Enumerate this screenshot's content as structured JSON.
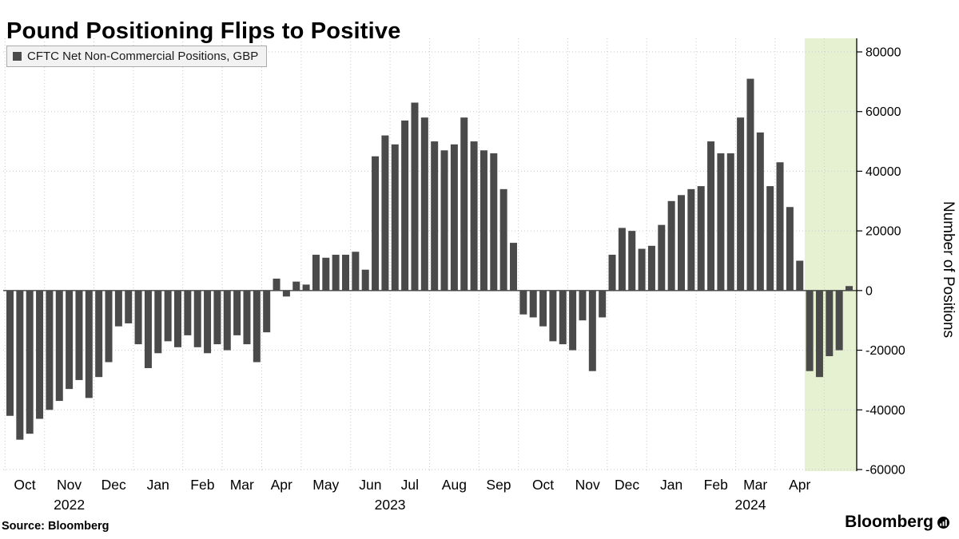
{
  "title": "Pound Positioning Flips to Positive",
  "legend": {
    "label": "CFTC Net Non-Commercial Positions, GBP",
    "swatch_color": "#4a4a4a",
    "swatch_icon": "square"
  },
  "source": "Source: Bloomberg",
  "brand": "Bloomberg",
  "brand_icon": "bloomberg-chart-mark",
  "colors": {
    "bar": "#4a4a4a",
    "highlight_band": "#e6f1d2",
    "gridline": "#c9c9c9",
    "zero_line": "#2b2b2b",
    "axis": "#000000",
    "background": "#ffffff"
  },
  "chart_data": {
    "type": "bar",
    "title": "Pound Positioning Flips to Positive",
    "series_name": "CFTC Net Non-Commercial Positions, GBP",
    "frequency": "weekly",
    "xlabel": "",
    "ylabel": "Number of Positions",
    "ylim": [
      -60000,
      80000
    ],
    "yticks": [
      80000,
      60000,
      40000,
      20000,
      0,
      -20000,
      -40000,
      -60000
    ],
    "grid": true,
    "legend_position": "top-left",
    "bar_color": "#4a4a4a",
    "highlight_color": "#e6f1d2",
    "highlight_start_week_index": 81,
    "months": [
      {
        "label": "Oct",
        "year": "2022",
        "values": [
          -42000,
          -50000,
          -48000,
          -43000
        ]
      },
      {
        "label": "Nov",
        "year": "2022",
        "values": [
          -40000,
          -37000,
          -33000,
          -30000,
          -36000
        ]
      },
      {
        "label": "Dec",
        "year": "2022",
        "values": [
          -29000,
          -24000,
          -12000,
          -11000
        ]
      },
      {
        "label": "Jan",
        "year": "2023",
        "values": [
          -18000,
          -26000,
          -21000,
          -17000,
          -19000
        ]
      },
      {
        "label": "Feb",
        "year": "2023",
        "values": [
          -15000,
          -19000,
          -21000,
          -18000
        ]
      },
      {
        "label": "Mar",
        "year": "2023",
        "values": [
          -20000,
          -15000,
          -18000,
          -24000
        ]
      },
      {
        "label": "Apr",
        "year": "2023",
        "values": [
          -14000,
          4000,
          -2000,
          3000
        ]
      },
      {
        "label": "May",
        "year": "2023",
        "values": [
          2000,
          12000,
          11000,
          12000,
          12000
        ]
      },
      {
        "label": "Jun",
        "year": "2023",
        "values": [
          13000,
          7000,
          45000,
          52000
        ]
      },
      {
        "label": "Jul",
        "year": "2023",
        "values": [
          49000,
          57000,
          63000,
          58000
        ]
      },
      {
        "label": "Aug",
        "year": "2023",
        "values": [
          50000,
          47000,
          49000,
          58000,
          50000
        ]
      },
      {
        "label": "Sep",
        "year": "2023",
        "values": [
          47000,
          46000,
          34000,
          16000
        ]
      },
      {
        "label": "Oct",
        "year": "2023",
        "values": [
          -8000,
          -9000,
          -12000,
          -17000,
          -18000
        ]
      },
      {
        "label": "Nov",
        "year": "2023",
        "values": [
          -20000,
          -10000,
          -27000,
          -9000
        ]
      },
      {
        "label": "Dec",
        "year": "2023",
        "values": [
          12000,
          21000,
          20000,
          14000
        ]
      },
      {
        "label": "Jan",
        "year": "2024",
        "values": [
          15000,
          22000,
          30000,
          32000,
          34000
        ]
      },
      {
        "label": "Feb",
        "year": "2024",
        "values": [
          35000,
          50000,
          46000,
          46000
        ]
      },
      {
        "label": "Mar",
        "year": "2024",
        "values": [
          58000,
          71000,
          53000,
          35000
        ]
      },
      {
        "label": "Apr",
        "year": "2024",
        "values": [
          43000,
          28000,
          10000,
          -27000,
          -29000
        ]
      },
      {
        "label": "",
        "year": "2024",
        "values": [
          -22000,
          -20000,
          1500
        ]
      }
    ]
  }
}
